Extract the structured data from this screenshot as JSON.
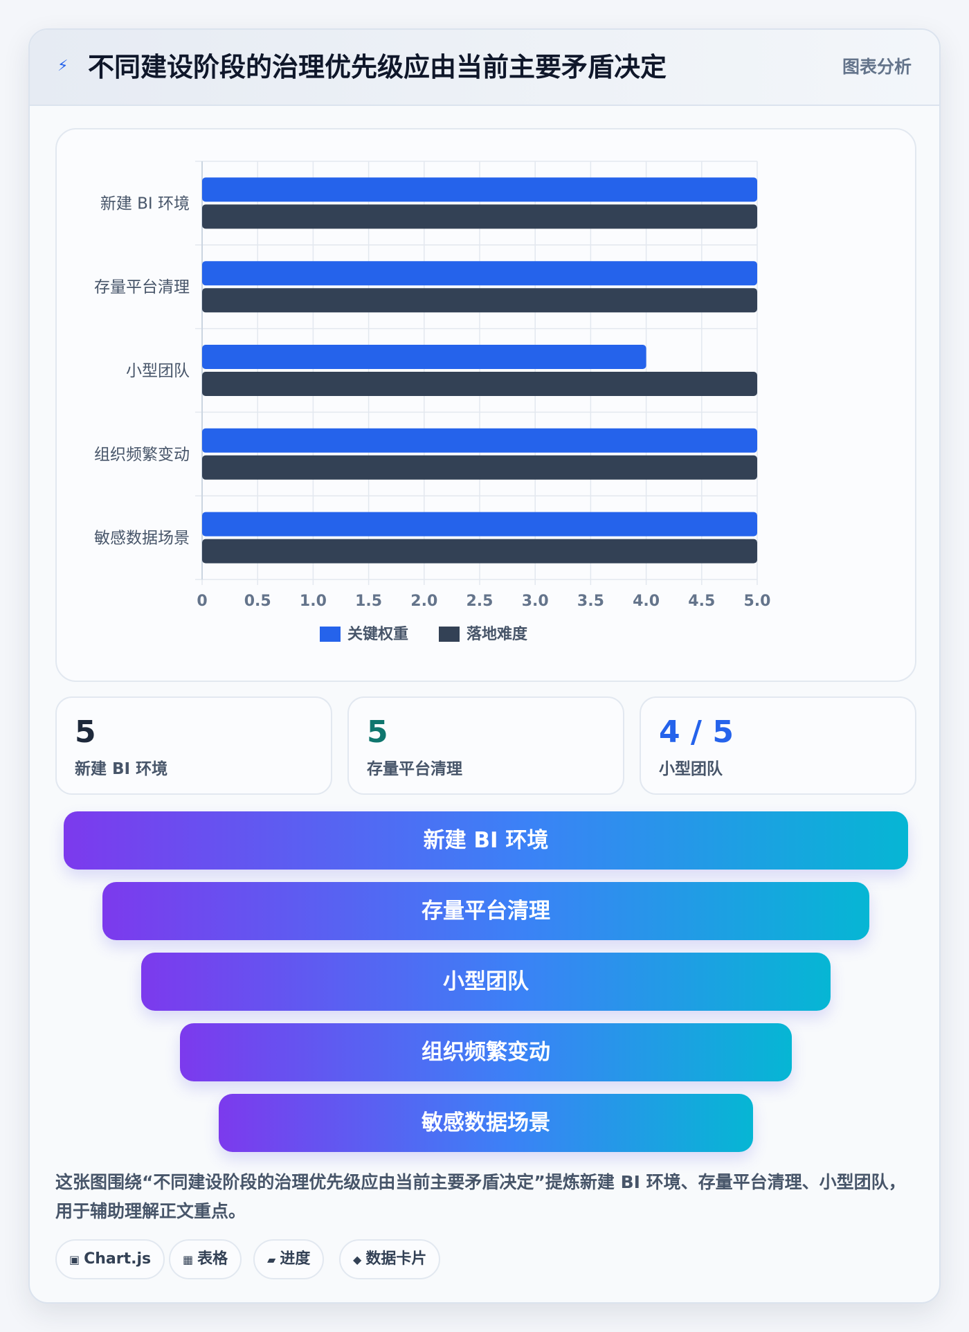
{
  "header": {
    "icon": "lightning-icon",
    "title": "不同建设阶段的治理优先级应由当前主要矛盾决定",
    "tag": "图表分析"
  },
  "chart_data": {
    "type": "bar",
    "orientation": "horizontal",
    "categories": [
      "新建 BI 环境",
      "存量平台清理",
      "小型团队",
      "组织频繁变动",
      "敏感数据场景"
    ],
    "series": [
      {
        "name": "关键权重",
        "values": [
          5,
          5,
          4,
          5,
          5
        ],
        "color": "#2563eb"
      },
      {
        "name": "落地难度",
        "values": [
          5,
          5,
          5,
          5,
          5
        ],
        "color": "#334155"
      }
    ],
    "xlim": [
      0,
      5
    ],
    "xticks": [
      "0",
      "0.5",
      "1.0",
      "1.5",
      "2.0",
      "2.5",
      "3.0",
      "3.5",
      "4.0",
      "4.5",
      "5.0"
    ],
    "grid": true,
    "legend": "bottom-center"
  },
  "stats": [
    {
      "value": "5",
      "label": "新建 BI 环境",
      "color": "#1e293b"
    },
    {
      "value": "5",
      "label": "存量平台清理",
      "color": "#0f766e"
    },
    {
      "value": "4 / 5",
      "label": "小型团队",
      "color": "#2563eb"
    }
  ],
  "funnel": [
    "新建 BI 环境",
    "存量平台清理",
    "小型团队",
    "组织频繁变动",
    "敏感数据场景"
  ],
  "caption": "这张图围绕“不同建设阶段的治理优先级应由当前主要矛盾决定”提炼新建 BI 环境、存量平台清理、小型团队，用于辅助理解正文重点。",
  "tags": [
    {
      "icon": "chip-icon",
      "glyph": "▣",
      "label": "Chart.js"
    },
    {
      "icon": "table-icon",
      "glyph": "▦",
      "label": "表格"
    },
    {
      "icon": "progress-icon",
      "glyph": "▰",
      "label": "进度"
    },
    {
      "icon": "diamond-icon",
      "glyph": "◆",
      "label": "数据卡片"
    }
  ]
}
